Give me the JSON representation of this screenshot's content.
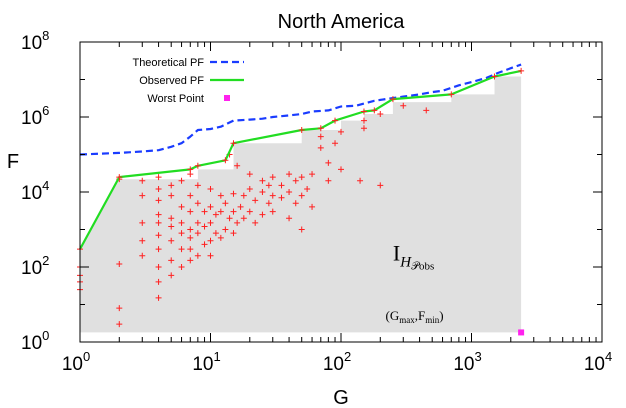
{
  "chart_data": {
    "type": "scatter",
    "title": "North America",
    "xlabel": "G",
    "ylabel": "F",
    "x_scale": "log",
    "y_scale": "log",
    "xlim": [
      1,
      10000
    ],
    "ylim": [
      1,
      100000000
    ],
    "x_ticks": [
      {
        "value": 1,
        "base": "10",
        "exp": "0"
      },
      {
        "value": 10,
        "base": "10",
        "exp": "1"
      },
      {
        "value": 100,
        "base": "10",
        "exp": "2"
      },
      {
        "value": 1000,
        "base": "10",
        "exp": "3"
      },
      {
        "value": 10000,
        "base": "10",
        "exp": "4"
      }
    ],
    "y_ticks": [
      {
        "value": 1,
        "base": "10",
        "exp": "0"
      },
      {
        "value": 100,
        "base": "10",
        "exp": "2"
      },
      {
        "value": 10000,
        "base": "10",
        "exp": "4"
      },
      {
        "value": 1000000,
        "base": "10",
        "exp": "6"
      },
      {
        "value": 100000000,
        "base": "10",
        "exp": "8"
      }
    ],
    "grid": false,
    "legend_position": "top-left",
    "colors": {
      "theoretical": "#1a3cff",
      "observed": "#22dd22",
      "worst": "#ff22ee",
      "points": "#ff2020",
      "region": "#e0e0e0"
    },
    "legend": [
      {
        "key": "theoretical",
        "label": "Theoretical PF",
        "style": "dashed-line"
      },
      {
        "key": "observed",
        "label": "Observed PF",
        "style": "solid-line"
      },
      {
        "key": "worst",
        "label": "Worst Point",
        "style": "square"
      }
    ],
    "series": [
      {
        "key": "theoretical",
        "name": "Theoretical PF",
        "type": "line",
        "dashed": true,
        "points": [
          [
            1,
            100000
          ],
          [
            2,
            110000
          ],
          [
            3,
            120000
          ],
          [
            4,
            130000
          ],
          [
            5,
            160000
          ],
          [
            6,
            200000
          ],
          [
            7,
            300000
          ],
          [
            8,
            450000
          ],
          [
            10,
            480000
          ],
          [
            12,
            550000
          ],
          [
            15,
            800000
          ],
          [
            20,
            850000
          ],
          [
            25,
            900000
          ],
          [
            30,
            1000000
          ],
          [
            40,
            1100000
          ],
          [
            50,
            1200000
          ],
          [
            60,
            1400000
          ],
          [
            80,
            1500000
          ],
          [
            100,
            1900000
          ],
          [
            130,
            2000000
          ],
          [
            180,
            2700000
          ],
          [
            220,
            3000000
          ],
          [
            300,
            3500000
          ],
          [
            400,
            4000000
          ],
          [
            500,
            4600000
          ],
          [
            600,
            5000000
          ],
          [
            800,
            7000000
          ],
          [
            1000,
            8500000
          ],
          [
            1300,
            11000000
          ],
          [
            1600,
            15000000
          ],
          [
            2000,
            20000000
          ],
          [
            2400,
            25000000
          ]
        ]
      },
      {
        "key": "observed",
        "name": "Observed PF",
        "type": "line",
        "dashed": false,
        "points": [
          [
            1,
            300
          ],
          [
            2,
            25000
          ],
          [
            7,
            40000
          ],
          [
            8,
            50000
          ],
          [
            13,
            70000
          ],
          [
            15,
            200000
          ],
          [
            50,
            450000
          ],
          [
            70,
            500000
          ],
          [
            90,
            800000
          ],
          [
            150,
            1400000
          ],
          [
            180,
            1500000
          ],
          [
            250,
            3000000
          ],
          [
            700,
            4000000
          ],
          [
            1500,
            12000000
          ],
          [
            2400,
            17000000
          ]
        ]
      },
      {
        "key": "worst",
        "name": "Worst Point",
        "type": "point",
        "points": [
          [
            2400,
            1.8
          ]
        ]
      },
      {
        "key": "points",
        "type": "scatter",
        "points": [
          [
            1,
            25
          ],
          [
            1,
            40
          ],
          [
            1,
            60
          ],
          [
            1,
            100
          ],
          [
            2,
            3
          ],
          [
            2,
            8
          ],
          [
            2,
            120
          ],
          [
            2,
            22000
          ],
          [
            3,
            200
          ],
          [
            3,
            500
          ],
          [
            3,
            1500
          ],
          [
            3,
            8000
          ],
          [
            3,
            20000
          ],
          [
            4,
            15
          ],
          [
            4,
            40
          ],
          [
            4,
            100
          ],
          [
            4,
            300
          ],
          [
            4,
            700
          ],
          [
            4,
            1500
          ],
          [
            4,
            2500
          ],
          [
            4,
            6000
          ],
          [
            4,
            12000
          ],
          [
            4,
            25000
          ],
          [
            5,
            60
          ],
          [
            5,
            150
          ],
          [
            5,
            500
          ],
          [
            5,
            1200
          ],
          [
            5,
            2000
          ],
          [
            5,
            8000
          ],
          [
            5,
            15000
          ],
          [
            6,
            100
          ],
          [
            6,
            300
          ],
          [
            6,
            800
          ],
          [
            6,
            1500
          ],
          [
            6,
            4000
          ],
          [
            6,
            20000
          ],
          [
            7,
            150
          ],
          [
            7,
            300
          ],
          [
            7,
            600
          ],
          [
            7,
            1000
          ],
          [
            7,
            3000
          ],
          [
            7,
            8000
          ],
          [
            7,
            30000
          ],
          [
            8,
            200
          ],
          [
            8,
            800
          ],
          [
            8,
            1500
          ],
          [
            8,
            5000
          ],
          [
            8,
            15000
          ],
          [
            9,
            400
          ],
          [
            9,
            1200
          ],
          [
            9,
            3000
          ],
          [
            10,
            200
          ],
          [
            10,
            500
          ],
          [
            10,
            1500
          ],
          [
            10,
            4000
          ],
          [
            10,
            12000
          ],
          [
            11,
            800
          ],
          [
            11,
            2500
          ],
          [
            12,
            600
          ],
          [
            12,
            3000
          ],
          [
            12,
            8000
          ],
          [
            13,
            1000
          ],
          [
            13,
            5000
          ],
          [
            14,
            2000
          ],
          [
            14,
            100000
          ],
          [
            15,
            800
          ],
          [
            15,
            3000
          ],
          [
            15,
            9000
          ],
          [
            16,
            1500
          ],
          [
            16,
            50000
          ],
          [
            17,
            4000
          ],
          [
            18,
            2000
          ],
          [
            18,
            8000
          ],
          [
            20,
            3000
          ],
          [
            20,
            12000
          ],
          [
            20,
            30000
          ],
          [
            22,
            1500
          ],
          [
            22,
            6000
          ],
          [
            25,
            2500
          ],
          [
            25,
            10000
          ],
          [
            25,
            20000
          ],
          [
            28,
            5000
          ],
          [
            28,
            15000
          ],
          [
            30,
            3000
          ],
          [
            30,
            8000
          ],
          [
            30,
            25000
          ],
          [
            35,
            7000
          ],
          [
            35,
            15000
          ],
          [
            40,
            2000
          ],
          [
            40,
            10000
          ],
          [
            40,
            30000
          ],
          [
            45,
            5000
          ],
          [
            45,
            20000
          ],
          [
            50,
            1000
          ],
          [
            50,
            8000
          ],
          [
            50,
            25000
          ],
          [
            55,
            12000
          ],
          [
            60,
            4000
          ],
          [
            60,
            30000
          ],
          [
            70,
            150000
          ],
          [
            70,
            300000
          ],
          [
            80,
            20000
          ],
          [
            80,
            60000
          ],
          [
            90,
            200000
          ],
          [
            100,
            40000
          ],
          [
            100,
            400000
          ],
          [
            140,
            20000
          ],
          [
            150,
            500000
          ],
          [
            150,
            800000
          ],
          [
            200,
            15000
          ],
          [
            200,
            1200000
          ],
          [
            300,
            2000000
          ],
          [
            450,
            1500000
          ]
        ]
      }
    ],
    "region": {
      "key": "region",
      "steps": [
        [
          1,
          300
        ],
        [
          2,
          22000
        ],
        [
          8,
          22000
        ],
        [
          8,
          40000
        ],
        [
          15,
          40000
        ],
        [
          15,
          200000
        ],
        [
          50,
          200000
        ],
        [
          50,
          450000
        ],
        [
          100,
          450000
        ],
        [
          100,
          800000
        ],
        [
          150,
          800000
        ],
        [
          150,
          1200000
        ],
        [
          250,
          1200000
        ],
        [
          250,
          2500000
        ],
        [
          700,
          2500000
        ],
        [
          700,
          4000000
        ],
        [
          1500,
          4000000
        ],
        [
          1500,
          12000000
        ],
        [
          2400,
          12000000
        ],
        [
          2400,
          17000000
        ]
      ],
      "floor": 1.8
    },
    "annotations": [
      {
        "key": "region_label",
        "base": "I",
        "sub": "H",
        "subsub": "𝒫obs",
        "x": 250,
        "y": 150
      },
      {
        "key": "worst_label",
        "open": "(",
        "g": "G",
        "g_sub": "max",
        "sep": ",",
        "f": "F",
        "f_sub": "min",
        "close": ")",
        "x": 900,
        "y": 5
      }
    ]
  }
}
